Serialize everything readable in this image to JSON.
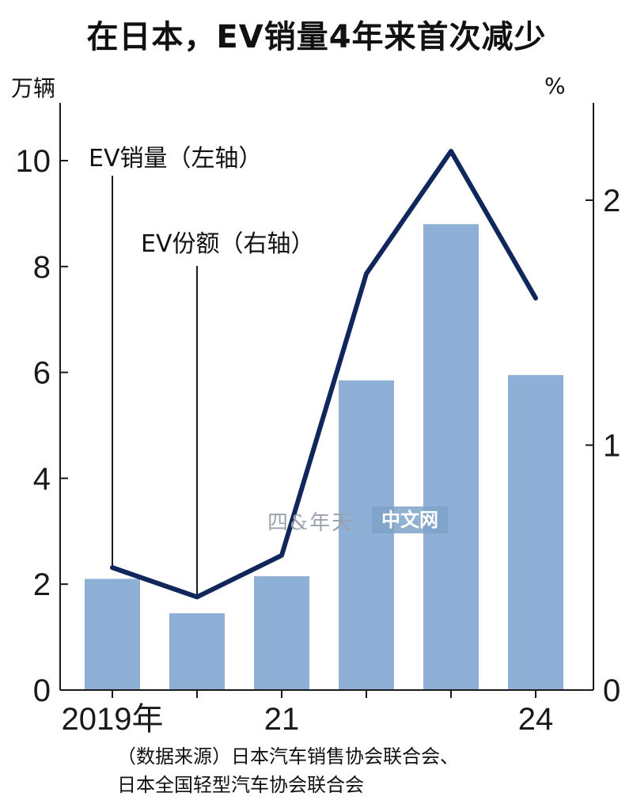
{
  "title": "在日本，EV销量4年来首次减少",
  "left_unit": "万辆",
  "right_unit": "%",
  "annotations": {
    "sales_label": "EV销量（左轴）",
    "share_label": "EV份额（右轴）"
  },
  "watermark": {
    "glyph": "四&年天",
    "text": "中文网"
  },
  "source": {
    "line1": "（数据来源）日本汽车销售协会联合会、",
    "line2": "日本全国轻型汽车协会联合会"
  },
  "colors": {
    "bar": "#8fb0d6",
    "line": "#10275c",
    "axis": "#1a1a1a"
  },
  "chart_data": {
    "type": "bar",
    "categories": [
      "2019",
      "2020",
      "2021",
      "2022",
      "2023",
      "2024"
    ],
    "x_tick_labels": [
      "2019年",
      "",
      "21",
      "",
      "",
      "24"
    ],
    "series": [
      {
        "name": "EV销量（左轴）",
        "type": "bar",
        "axis": "left",
        "values": [
          2.1,
          1.45,
          2.15,
          5.85,
          8.8,
          5.95
        ]
      },
      {
        "name": "EV份额（右轴）",
        "type": "line",
        "axis": "right",
        "values": [
          0.5,
          0.38,
          0.55,
          1.7,
          2.2,
          1.6
        ]
      }
    ],
    "ylim_left": [
      0,
      10
    ],
    "yticks_left": [
      0,
      2,
      4,
      6,
      8,
      10
    ],
    "ylim_right": [
      0,
      2
    ],
    "yticks_right": [
      0,
      1,
      2
    ],
    "ylabel_left": "万辆",
    "ylabel_right": "%",
    "grid": false
  }
}
